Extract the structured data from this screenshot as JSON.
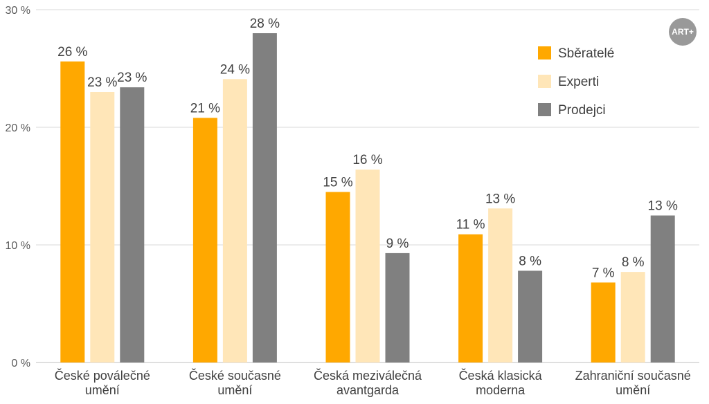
{
  "chart_data": {
    "type": "bar",
    "categories": [
      [
        "České poválečné",
        "umění"
      ],
      [
        "České současné",
        "umění"
      ],
      [
        "Česká meziválečná",
        "avantgarda"
      ],
      [
        "Česká klasická",
        "moderna"
      ],
      [
        "Zahraniční současné",
        "umění"
      ]
    ],
    "series": [
      {
        "name": "Sběratelé",
        "color": "#FFA800",
        "values": [
          25.6,
          20.8,
          14.5,
          10.9,
          6.8
        ],
        "labels": [
          "26 %",
          "21 %",
          "15 %",
          "11 %",
          "7 %"
        ]
      },
      {
        "name": "Experti",
        "color": "#FFE6B8",
        "values": [
          23.0,
          24.1,
          16.4,
          13.1,
          7.7
        ],
        "labels": [
          "23 %",
          "24 %",
          "16 %",
          "13 %",
          "8 %"
        ]
      },
      {
        "name": "Prodejci",
        "color": "#808080",
        "values": [
          23.4,
          28.0,
          9.3,
          7.8,
          12.5
        ],
        "labels": [
          "23 %",
          "28 %",
          "9 %",
          "8 %",
          "13 %"
        ]
      }
    ],
    "yticks": [
      0,
      10,
      20,
      30
    ],
    "ytick_labels": [
      "0 %",
      "10 %",
      "20 %",
      "30 %"
    ],
    "ylim": [
      0,
      30
    ],
    "grid": true,
    "legend_position": "top-right"
  },
  "logo": {
    "text": "ART+",
    "color": "#999999"
  }
}
